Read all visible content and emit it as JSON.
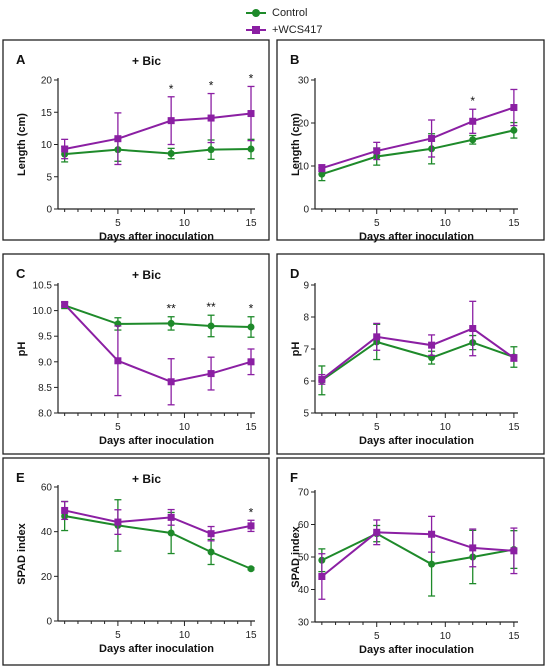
{
  "legend": {
    "entries": [
      {
        "label": "Control",
        "color": "#1e8a2a",
        "marker": "circle"
      },
      {
        "label": "+WCS417",
        "color": "#8b1fa3",
        "marker": "square"
      }
    ]
  },
  "chart_data": [
    {
      "panel": "A",
      "type": "line",
      "title": "+ Bic",
      "xlabel": "Days after inoculation",
      "ylabel": "Length (cm)",
      "xlim": [
        0.5,
        15.3
      ],
      "ylim": [
        0,
        20
      ],
      "xticks": [
        5,
        10,
        15
      ],
      "yticks": [
        0,
        5,
        10,
        15,
        20
      ],
      "grid": false,
      "series": [
        {
          "name": "Control",
          "x": [
            1,
            5,
            9,
            12,
            15
          ],
          "y": [
            8.5,
            9.2,
            8.6,
            9.2,
            9.3
          ],
          "err": [
            1.2,
            1.8,
            0.8,
            1.5,
            1.5
          ]
        },
        {
          "name": "+WCS417",
          "x": [
            1,
            5,
            9,
            12,
            15
          ],
          "y": [
            9.3,
            10.9,
            13.7,
            14.1,
            14.8
          ],
          "err": [
            1.5,
            4.0,
            3.7,
            3.8,
            4.2
          ]
        }
      ],
      "annotations": [
        {
          "x": 9,
          "text": "*"
        },
        {
          "x": 12,
          "text": "*"
        },
        {
          "x": 15,
          "text": "*"
        }
      ]
    },
    {
      "panel": "B",
      "type": "line",
      "title": "",
      "xlabel": "Days after inoculation",
      "ylabel": "Length (cm)",
      "xlim": [
        0.5,
        15.3
      ],
      "ylim": [
        0,
        30
      ],
      "xticks": [
        5,
        10,
        15
      ],
      "yticks": [
        0,
        10,
        20,
        30
      ],
      "grid": false,
      "series": [
        {
          "name": "Control",
          "x": [
            1,
            5,
            9,
            12,
            15
          ],
          "y": [
            8.1,
            12.2,
            14.0,
            16.1,
            18.3
          ],
          "err": [
            1.5,
            2.0,
            3.5,
            1.0,
            1.8
          ]
        },
        {
          "name": "+WCS417",
          "x": [
            1,
            5,
            9,
            12,
            15
          ],
          "y": [
            9.5,
            13.5,
            16.4,
            20.4,
            23.6
          ],
          "err": [
            0.8,
            2.0,
            4.3,
            2.8,
            4.2
          ]
        }
      ],
      "annotations": [
        {
          "x": 12,
          "text": "*"
        }
      ]
    },
    {
      "panel": "C",
      "type": "line",
      "title": "+ Bic",
      "xlabel": "Days after inoculation",
      "ylabel": "pH",
      "xlim": [
        0.5,
        15.3
      ],
      "ylim": [
        8.0,
        10.5
      ],
      "xticks": [
        5,
        10,
        15
      ],
      "yticks": [
        8.0,
        8.5,
        9.0,
        9.5,
        10.0,
        10.5
      ],
      "ytick_format": 1,
      "grid": false,
      "series": [
        {
          "name": "Control",
          "x": [
            1,
            5,
            9,
            12,
            15
          ],
          "y": [
            10.1,
            9.74,
            9.75,
            9.7,
            9.68
          ],
          "err": [
            0.06,
            0.12,
            0.13,
            0.21,
            0.2
          ]
        },
        {
          "name": "+WCS417",
          "x": [
            1,
            5,
            9,
            12,
            15
          ],
          "y": [
            10.12,
            9.02,
            8.61,
            8.77,
            9.0
          ],
          "err": [
            0.05,
            0.68,
            0.45,
            0.32,
            0.25
          ]
        }
      ],
      "annotations": [
        {
          "x": 9,
          "text": "**"
        },
        {
          "x": 12,
          "text": "**"
        },
        {
          "x": 15,
          "text": "*"
        }
      ]
    },
    {
      "panel": "D",
      "type": "line",
      "title": "",
      "xlabel": "Days after inoculation",
      "ylabel": "pH",
      "xlim": [
        0.5,
        15.3
      ],
      "ylim": [
        5,
        9
      ],
      "xticks": [
        5,
        10,
        15
      ],
      "yticks": [
        5,
        6,
        7,
        8,
        9
      ],
      "grid": false,
      "series": [
        {
          "name": "Control",
          "x": [
            1,
            5,
            9,
            12,
            15
          ],
          "y": [
            6.02,
            7.22,
            6.73,
            7.2,
            6.75
          ],
          "err": [
            0.45,
            0.55,
            0.2,
            0.22,
            0.32
          ]
        },
        {
          "name": "+WCS417",
          "x": [
            1,
            5,
            9,
            12,
            15
          ],
          "y": [
            6.05,
            7.38,
            7.12,
            7.64,
            6.72
          ],
          "err": [
            0.15,
            0.42,
            0.32,
            0.85,
            0.1
          ]
        }
      ],
      "annotations": []
    },
    {
      "panel": "E",
      "type": "line",
      "title": "+ Bic",
      "xlabel": "Days after inoculation",
      "ylabel": "SPAD index",
      "xlim": [
        0.5,
        15.3
      ],
      "ylim": [
        0,
        60
      ],
      "xticks": [
        5,
        10,
        15
      ],
      "yticks": [
        0,
        20,
        40,
        60
      ],
      "grid": false,
      "series": [
        {
          "name": "Control",
          "x": [
            1,
            5,
            9,
            12,
            15
          ],
          "y": [
            47.0,
            42.8,
            39.4,
            30.9,
            23.4
          ],
          "err": [
            6.5,
            11.5,
            9.2,
            5.6,
            0.5
          ]
        },
        {
          "name": "+WCS417",
          "x": [
            1,
            5,
            9,
            12,
            15
          ],
          "y": [
            49.5,
            44.3,
            46.4,
            39.1,
            42.6
          ],
          "err": [
            4.0,
            5.5,
            3.5,
            3.2,
            2.5
          ]
        }
      ],
      "annotations": [
        {
          "x": 15,
          "text": "*"
        }
      ]
    },
    {
      "panel": "F",
      "type": "line",
      "title": "",
      "xlabel": "Days after inoculation",
      "ylabel": "SPAD index",
      "xlim": [
        0.5,
        15.3
      ],
      "ylim": [
        30,
        70
      ],
      "xticks": [
        5,
        10,
        15
      ],
      "yticks": [
        30,
        40,
        50,
        60,
        70
      ],
      "grid": false,
      "series": [
        {
          "name": "Control",
          "x": [
            1,
            5,
            9,
            12,
            15
          ],
          "y": [
            49.0,
            57.2,
            47.8,
            50.0,
            52.3
          ],
          "err": [
            3.5,
            2.5,
            9.8,
            8.2,
            5.8
          ]
        },
        {
          "name": "+WCS417",
          "x": [
            1,
            5,
            9,
            12,
            15
          ],
          "y": [
            44.0,
            57.6,
            57.0,
            52.8,
            51.9
          ],
          "err": [
            7.0,
            3.8,
            5.5,
            5.8,
            7.0
          ]
        }
      ],
      "annotations": []
    }
  ]
}
